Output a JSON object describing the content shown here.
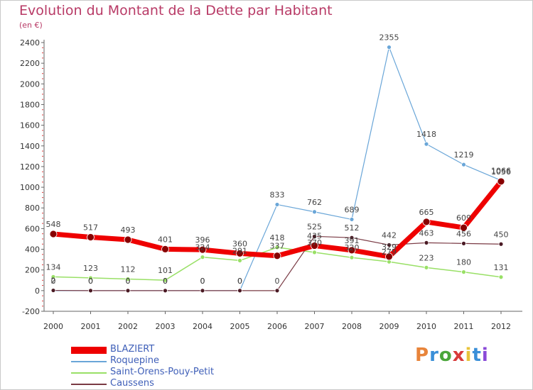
{
  "title": "Evolution du Montant de la Dette par Habitant",
  "unit_label": "(en €)",
  "brand": {
    "text": "Proxiti",
    "colors": [
      "#e8843a",
      "#3a8fd8",
      "#4aa63a",
      "#d83a3a",
      "#e8c43a",
      "#3a8fd8",
      "#8a4ad8"
    ]
  },
  "chart_data": {
    "type": "line",
    "title": "Evolution du Montant de la Dette par Habitant",
    "ylabel": "(en €)",
    "xlabel": "",
    "x": [
      "2000",
      "2001",
      "2002",
      "2003",
      "2004",
      "2005",
      "2006",
      "2007",
      "2008",
      "2009",
      "2010",
      "2011",
      "2012"
    ],
    "ylim": [
      -200,
      2400
    ],
    "yticks": [
      -200,
      0,
      200,
      400,
      600,
      800,
      1000,
      1200,
      1400,
      1600,
      1800,
      2000,
      2200,
      2400
    ],
    "grid": false,
    "legend": "bottom-left",
    "series": [
      {
        "name": "Roquepine",
        "color": "#6aa6d8",
        "width": 1.2,
        "marker_radius": 3,
        "values": [
          0,
          0,
          0,
          0,
          0,
          0,
          833,
          762,
          689,
          2355,
          1418,
          1219,
          1066
        ],
        "labels": [
          "0",
          "0",
          "0",
          "0",
          "0",
          "0",
          "833",
          "762",
          "689",
          "2355",
          "1418",
          "1219",
          "1066"
        ]
      },
      {
        "name": "Saint-Orens-Pouy-Petit",
        "color": "#99e066",
        "width": 1.5,
        "marker_radius": 3,
        "values": [
          134,
          123,
          112,
          101,
          324,
          291,
          418,
          370,
          320,
          279,
          223,
          180,
          131
        ],
        "labels": [
          "134",
          "123",
          "112",
          "101",
          "324",
          "291",
          "418",
          "370",
          "320",
          "279",
          "223",
          "180",
          "131"
        ]
      },
      {
        "name": "Caussens",
        "color": "#7a3a44",
        "width": 1.2,
        "marker_radius": 3,
        "values": [
          2,
          0,
          0,
          0,
          0,
          0,
          0,
          525,
          512,
          442,
          463,
          456,
          450
        ],
        "labels": [
          "2",
          "0",
          "0",
          "0",
          "0",
          "0",
          "0",
          "525",
          "512",
          "442",
          "463",
          "456",
          "450"
        ]
      },
      {
        "name": "BLAZIERT",
        "color": "#ee0000",
        "width": 7,
        "marker_radius": 5,
        "values": [
          548,
          517,
          493,
          401,
          396,
          360,
          337,
          435,
          391,
          329,
          665,
          609,
          1056
        ],
        "labels": [
          "548",
          "517",
          "493",
          "401",
          "396",
          "360",
          "337",
          "435",
          "391",
          "329",
          "665",
          "609",
          "1056"
        ]
      }
    ],
    "legend_order": [
      "BLAZIERT",
      "Roquepine",
      "Saint-Orens-Pouy-Petit",
      "Caussens"
    ]
  }
}
